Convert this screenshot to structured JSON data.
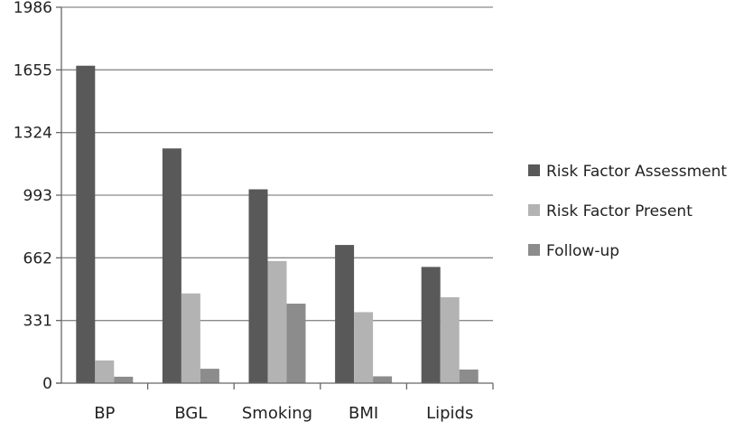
{
  "chart_data": {
    "type": "bar",
    "categories": [
      "BP",
      "BGL",
      "Smoking",
      "BMI",
      "Lipids"
    ],
    "series": [
      {
        "name": "Risk Factor Assessment",
        "color": "#595959",
        "values": [
          1677,
          1240,
          1024,
          730,
          614
        ]
      },
      {
        "name": "Risk Factor Present",
        "color": "#b3b3b3",
        "values": [
          120,
          474,
          645,
          375,
          454
        ]
      },
      {
        "name": "Follow-up",
        "color": "#8c8c8c",
        "values": [
          34,
          76,
          420,
          36,
          72
        ]
      }
    ],
    "yticks": [
      0,
      331,
      662,
      993,
      1324,
      1655,
      1986
    ],
    "ylim": [
      0,
      1986
    ],
    "grid": true,
    "legend_position": "right",
    "title": "",
    "xlabel": "",
    "ylabel": ""
  }
}
